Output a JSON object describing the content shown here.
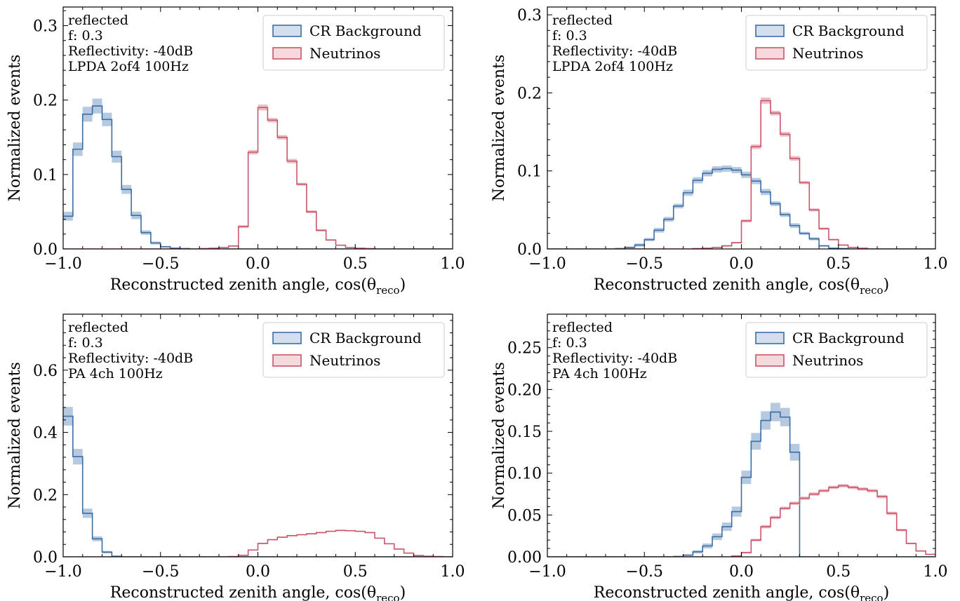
{
  "colors": {
    "cr": "#3b6ea5",
    "cr_band": "#a8c0dc",
    "nu": "#c9566a",
    "nu_band": "#eab3bc"
  },
  "chart_data": [
    {
      "type": "histogram",
      "xlabel": "Reconstructed zenith angle, cos(θreco)",
      "ylabel": "Normalized events",
      "xlim": [
        -1.0,
        1.0
      ],
      "ylim": [
        0,
        0.325
      ],
      "xticks": [
        "−1.0",
        "−0.5",
        "0.0",
        "0.5",
        "1.0"
      ],
      "xtick_values": [
        -1.0,
        -0.5,
        0.0,
        0.5,
        1.0
      ],
      "yticks": [
        "0.0",
        "0.1",
        "0.2",
        "0.3"
      ],
      "ytick_values": [
        0.0,
        0.1,
        0.2,
        0.3
      ],
      "annotation": [
        "reflected",
        "f: 0.3",
        "Reflectivity: -40dB",
        "LPDA 2of4 100Hz"
      ],
      "legend_position": "top-right",
      "bin_edges": [
        -1.0,
        -0.95,
        -0.9,
        -0.85,
        -0.8,
        -0.75,
        -0.7,
        -0.65,
        -0.6,
        -0.55,
        -0.5,
        -0.45,
        -0.4,
        -0.35,
        -0.3,
        -0.25,
        -0.2,
        -0.15,
        -0.1,
        -0.05,
        0.0,
        0.05,
        0.1,
        0.15,
        0.2,
        0.25,
        0.3,
        0.35,
        0.4,
        0.45,
        0.5,
        0.55,
        0.6,
        0.65,
        0.7,
        0.75,
        0.8,
        0.85,
        0.9,
        0.95,
        1.0
      ],
      "series": [
        {
          "name": "CR Background",
          "color_key": "cr",
          "values": [
            0.044,
            0.134,
            0.181,
            0.192,
            0.174,
            0.124,
            0.08,
            0.045,
            0.022,
            0.008,
            0.003,
            0.001,
            0.0005,
            0,
            0,
            0,
            0,
            0,
            0,
            0,
            0,
            0,
            0,
            0,
            0,
            0,
            0,
            0,
            0,
            0,
            0,
            0,
            0,
            0,
            0,
            0,
            0,
            0,
            0,
            0
          ],
          "errors": [
            0.006,
            0.009,
            0.01,
            0.01,
            0.009,
            0.008,
            0.006,
            0.005,
            0.003,
            0.002,
            0.001,
            0.0008,
            0.0004,
            0,
            0,
            0,
            0,
            0,
            0,
            0,
            0,
            0,
            0,
            0,
            0,
            0,
            0,
            0,
            0,
            0,
            0,
            0,
            0,
            0,
            0,
            0,
            0,
            0,
            0,
            0
          ]
        },
        {
          "name": "Neutrinos",
          "color_key": "nu",
          "values": [
            0,
            0,
            0,
            0,
            0,
            0,
            0,
            0,
            0,
            0,
            0,
            0,
            0,
            0,
            0.0005,
            0.001,
            0.002,
            0.004,
            0.03,
            0.13,
            0.19,
            0.173,
            0.15,
            0.118,
            0.087,
            0.05,
            0.025,
            0.012,
            0.005,
            0.002,
            0.001,
            0.0005,
            0,
            0,
            0,
            0,
            0,
            0,
            0,
            0
          ],
          "errors": [
            0,
            0,
            0,
            0,
            0,
            0,
            0,
            0,
            0,
            0,
            0,
            0,
            0,
            0,
            0.0003,
            0.0005,
            0.0007,
            0.001,
            0.002,
            0.003,
            0.004,
            0.003,
            0.003,
            0.003,
            0.002,
            0.002,
            0.0015,
            0.001,
            0.0007,
            0.0005,
            0.0003,
            0.0002,
            0,
            0,
            0,
            0,
            0,
            0,
            0,
            0
          ]
        }
      ]
    },
    {
      "type": "histogram",
      "xlabel": "Reconstructed zenith angle, cos(θreco)",
      "ylabel": "Normalized events",
      "xlim": [
        -1.0,
        1.0
      ],
      "ylim": [
        0,
        0.31
      ],
      "xticks": [
        "−1.0",
        "−0.5",
        "0.0",
        "0.5",
        "1.0"
      ],
      "xtick_values": [
        -1.0,
        -0.5,
        0.0,
        0.5,
        1.0
      ],
      "yticks": [
        "0.0",
        "0.1",
        "0.2",
        "0.3"
      ],
      "ytick_values": [
        0.0,
        0.1,
        0.2,
        0.3
      ],
      "annotation": [
        "reflected",
        "f: 0.3",
        "Reflectivity: -40dB",
        "LPDA 2of4 100Hz"
      ],
      "legend_position": "top-right",
      "bin_edges": [
        -1.0,
        -0.95,
        -0.9,
        -0.85,
        -0.8,
        -0.75,
        -0.7,
        -0.65,
        -0.6,
        -0.55,
        -0.5,
        -0.45,
        -0.4,
        -0.35,
        -0.3,
        -0.25,
        -0.2,
        -0.15,
        -0.1,
        -0.05,
        0.0,
        0.05,
        0.1,
        0.15,
        0.2,
        0.25,
        0.3,
        0.35,
        0.4,
        0.45,
        0.5,
        0.55,
        0.6,
        0.65,
        0.7,
        0.75,
        0.8,
        0.85,
        0.9,
        0.95,
        1.0
      ],
      "series": [
        {
          "name": "CR Background",
          "color_key": "cr",
          "values": [
            0,
            0,
            0,
            0,
            0,
            0,
            0,
            0.0005,
            0.002,
            0.005,
            0.012,
            0.024,
            0.038,
            0.055,
            0.072,
            0.088,
            0.097,
            0.102,
            0.103,
            0.101,
            0.095,
            0.087,
            0.073,
            0.058,
            0.044,
            0.03,
            0.02,
            0.013,
            0.004,
            0.001,
            0.0005,
            0,
            0,
            0,
            0,
            0,
            0,
            0,
            0,
            0
          ],
          "errors": [
            0,
            0,
            0,
            0,
            0,
            0,
            0,
            0.0003,
            0.001,
            0.002,
            0.002,
            0.003,
            0.003,
            0.003,
            0.004,
            0.004,
            0.004,
            0.004,
            0.004,
            0.004,
            0.004,
            0.004,
            0.004,
            0.003,
            0.003,
            0.003,
            0.002,
            0.002,
            0.001,
            0.0005,
            0.0003,
            0,
            0,
            0,
            0,
            0,
            0,
            0,
            0,
            0
          ]
        },
        {
          "name": "Neutrinos",
          "color_key": "nu",
          "values": [
            0,
            0,
            0,
            0,
            0,
            0,
            0,
            0,
            0,
            0,
            0,
            0,
            0,
            0,
            0,
            0.0005,
            0.001,
            0.002,
            0.004,
            0.008,
            0.036,
            0.131,
            0.19,
            0.174,
            0.147,
            0.116,
            0.085,
            0.05,
            0.026,
            0.012,
            0.005,
            0.002,
            0.001,
            0,
            0,
            0,
            0,
            0,
            0,
            0
          ],
          "errors": [
            0,
            0,
            0,
            0,
            0,
            0,
            0,
            0,
            0,
            0,
            0,
            0,
            0,
            0,
            0,
            0.0003,
            0.0005,
            0.0007,
            0.001,
            0.001,
            0.002,
            0.003,
            0.004,
            0.003,
            0.003,
            0.003,
            0.002,
            0.002,
            0.0015,
            0.001,
            0.0007,
            0.0004,
            0.0002,
            0,
            0,
            0,
            0,
            0,
            0,
            0
          ]
        }
      ]
    },
    {
      "type": "histogram",
      "xlabel": "Reconstructed zenith angle, cos(θreco)",
      "ylabel": "Normalized events",
      "xlim": [
        -1.0,
        1.0
      ],
      "ylim": [
        0,
        0.78
      ],
      "xticks": [
        "−1.0",
        "−0.5",
        "0.0",
        "0.5",
        "1.0"
      ],
      "xtick_values": [
        -1.0,
        -0.5,
        0.0,
        0.5,
        1.0
      ],
      "yticks": [
        "0.0",
        "0.2",
        "0.4",
        "0.6"
      ],
      "ytick_values": [
        0.0,
        0.2,
        0.4,
        0.6
      ],
      "annotation": [
        "reflected",
        "f: 0.3",
        "Reflectivity: -40dB",
        "PA 4ch 100Hz"
      ],
      "legend_position": "top-right",
      "bin_edges": [
        -1.0,
        -0.95,
        -0.9,
        -0.85,
        -0.8,
        -0.75,
        -0.7,
        -0.65,
        -0.6,
        -0.55,
        -0.5,
        -0.45,
        -0.4,
        -0.35,
        -0.3,
        -0.25,
        -0.2,
        -0.15,
        -0.1,
        -0.05,
        0.0,
        0.05,
        0.1,
        0.15,
        0.2,
        0.25,
        0.3,
        0.35,
        0.4,
        0.45,
        0.5,
        0.55,
        0.6,
        0.65,
        0.7,
        0.75,
        0.8,
        0.85,
        0.9,
        0.95,
        1.0
      ],
      "series": [
        {
          "name": "CR Background",
          "color_key": "cr",
          "values": [
            0.452,
            0.322,
            0.14,
            0.058,
            0.015,
            0.002,
            0,
            0,
            0,
            0,
            0,
            0,
            0,
            0,
            0,
            0,
            0,
            0,
            0,
            0,
            0,
            0,
            0,
            0,
            0,
            0,
            0,
            0,
            0,
            0,
            0,
            0,
            0,
            0,
            0,
            0,
            0,
            0,
            0,
            0
          ],
          "errors": [
            0.03,
            0.025,
            0.015,
            0.008,
            0.004,
            0.001,
            0,
            0,
            0,
            0,
            0,
            0,
            0,
            0,
            0,
            0,
            0,
            0,
            0,
            0,
            0,
            0,
            0,
            0,
            0,
            0,
            0,
            0,
            0,
            0,
            0,
            0,
            0,
            0,
            0,
            0,
            0,
            0,
            0,
            0
          ]
        },
        {
          "name": "Neutrinos",
          "color_key": "nu",
          "values": [
            0,
            0,
            0,
            0,
            0,
            0,
            0,
            0,
            0,
            0,
            0,
            0,
            0,
            0,
            0,
            0,
            0,
            0.001,
            0.005,
            0.022,
            0.043,
            0.055,
            0.063,
            0.068,
            0.071,
            0.074,
            0.078,
            0.082,
            0.085,
            0.084,
            0.082,
            0.078,
            0.06,
            0.042,
            0.025,
            0.012,
            0.004,
            0.002,
            0.001,
            0
          ],
          "errors": [
            0,
            0,
            0,
            0,
            0,
            0,
            0,
            0,
            0,
            0,
            0,
            0,
            0,
            0,
            0,
            0,
            0,
            0.0005,
            0.001,
            0.002,
            0.002,
            0.002,
            0.002,
            0.002,
            0.002,
            0.002,
            0.002,
            0.002,
            0.002,
            0.002,
            0.002,
            0.002,
            0.002,
            0.002,
            0.0015,
            0.001,
            0.0007,
            0.0005,
            0.0003,
            0
          ]
        }
      ]
    },
    {
      "type": "histogram",
      "xlabel": "Reconstructed zenith angle, cos(θreco)",
      "ylabel": "Normalized events",
      "xlim": [
        -1.0,
        1.0
      ],
      "ylim": [
        0,
        0.29
      ],
      "xticks": [
        "−1.0",
        "−0.5",
        "0.0",
        "0.5",
        "1.0"
      ],
      "xtick_values": [
        -1.0,
        -0.5,
        0.0,
        0.5,
        1.0
      ],
      "yticks": [
        "0.00",
        "0.05",
        "0.10",
        "0.15",
        "0.20",
        "0.25"
      ],
      "ytick_values": [
        0.0,
        0.05,
        0.1,
        0.15,
        0.2,
        0.25
      ],
      "annotation": [
        "reflected",
        "f: 0.3",
        "Reflectivity: -40dB",
        "PA 4ch 100Hz"
      ],
      "legend_position": "top-right",
      "bin_edges": [
        -1.0,
        -0.95,
        -0.9,
        -0.85,
        -0.8,
        -0.75,
        -0.7,
        -0.65,
        -0.6,
        -0.55,
        -0.5,
        -0.45,
        -0.4,
        -0.35,
        -0.3,
        -0.25,
        -0.2,
        -0.15,
        -0.1,
        -0.05,
        0.0,
        0.05,
        0.1,
        0.15,
        0.2,
        0.25,
        0.3,
        0.35,
        0.4,
        0.45,
        0.5,
        0.55,
        0.6,
        0.65,
        0.7,
        0.75,
        0.8,
        0.85,
        0.9,
        0.95,
        1.0
      ],
      "series": [
        {
          "name": "CR Background",
          "color_key": "cr",
          "values": [
            0,
            0,
            0,
            0,
            0,
            0,
            0,
            0,
            0,
            0,
            0,
            0,
            0,
            0.0005,
            0.002,
            0.006,
            0.013,
            0.024,
            0.036,
            0.054,
            0.095,
            0.138,
            0.163,
            0.173,
            0.167,
            0.125,
            0,
            0,
            0,
            0,
            0,
            0,
            0,
            0,
            0,
            0,
            0,
            0,
            0,
            0
          ],
          "errors": [
            0,
            0,
            0,
            0,
            0,
            0,
            0,
            0,
            0,
            0,
            0,
            0,
            0,
            0.0003,
            0.001,
            0.002,
            0.003,
            0.004,
            0.005,
            0.006,
            0.008,
            0.01,
            0.011,
            0.011,
            0.011,
            0.01,
            0,
            0,
            0,
            0,
            0,
            0,
            0,
            0,
            0,
            0,
            0,
            0,
            0,
            0
          ]
        },
        {
          "name": "Neutrinos",
          "color_key": "nu",
          "values": [
            0,
            0,
            0,
            0,
            0,
            0,
            0,
            0,
            0,
            0,
            0,
            0,
            0,
            0,
            0,
            0,
            0,
            0,
            0,
            0.001,
            0.005,
            0.02,
            0.036,
            0.047,
            0.058,
            0.064,
            0.07,
            0.075,
            0.079,
            0.083,
            0.085,
            0.083,
            0.081,
            0.079,
            0.072,
            0.052,
            0.032,
            0.016,
            0.007,
            0.003
          ],
          "errors": [
            0,
            0,
            0,
            0,
            0,
            0,
            0,
            0,
            0,
            0,
            0,
            0,
            0,
            0,
            0,
            0,
            0,
            0,
            0,
            0.0005,
            0.001,
            0.0015,
            0.002,
            0.002,
            0.002,
            0.002,
            0.002,
            0.002,
            0.002,
            0.002,
            0.002,
            0.002,
            0.002,
            0.002,
            0.002,
            0.002,
            0.0015,
            0.001,
            0.0007,
            0.0005
          ]
        }
      ]
    }
  ]
}
